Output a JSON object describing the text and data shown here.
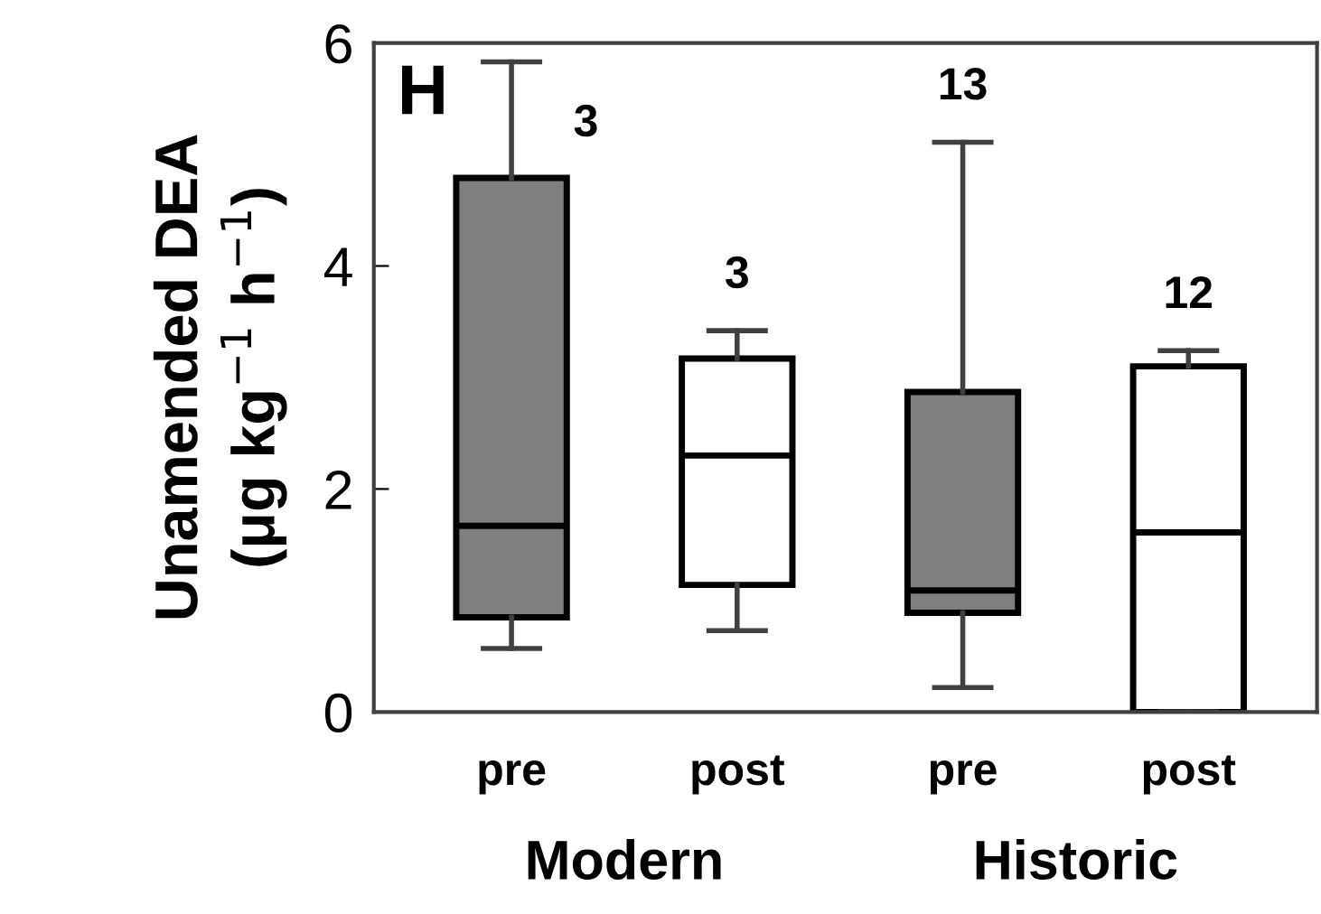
{
  "chart_data": {
    "type": "box",
    "title": "H",
    "ylabel": "Unamended DEA\n(μg kg$^{−1}$ h$^{−1}$)",
    "categories": [
      "pre",
      "post",
      "pre",
      "post"
    ],
    "colors": [
      "#7f7f7f",
      "#ffffff",
      "#7f7f7f",
      "#ffffff"
    ],
    "boxes": [
      {
        "low": 0.57,
        "q1": 0.85,
        "median": 1.67,
        "q3": 4.79,
        "high": 5.83
      },
      {
        "low": 0.73,
        "q1": 1.14,
        "median": 2.3,
        "q3": 3.17,
        "high": 3.42
      },
      {
        "low": 0.22,
        "q1": 0.89,
        "median": 1.09,
        "q3": 2.87,
        "high": 5.11
      },
      {
        "low": 0,
        "q1": 0,
        "median": 1.61,
        "q3": 3.1,
        "high": 3.24
      }
    ],
    "annotations": [
      "3",
      "3",
      "13",
      "12",
      "Modern",
      "Historic"
    ],
    "ylim": [
      0,
      6
    ],
    "yticks": [
      0,
      2,
      4,
      6
    ],
    "grid": false,
    "legend": false
  }
}
